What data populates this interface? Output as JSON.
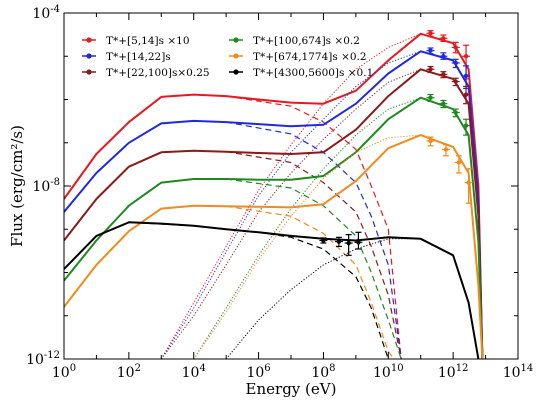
{
  "chart_data": {
    "type": "line",
    "title": "",
    "xlabel": "Energy (eV)",
    "ylabel": "Flux (erg/cm²/s)",
    "xscale": "log",
    "yscale": "log",
    "xlim": [
      1,
      100000000000000.0
    ],
    "ylim": [
      1e-12,
      0.0001
    ],
    "x_ticks": [
      {
        "v": 1,
        "b": "10",
        "e": "0"
      },
      {
        "v": 100,
        "b": "10",
        "e": "2"
      },
      {
        "v": 10000,
        "b": "10",
        "e": "4"
      },
      {
        "v": 1000000,
        "b": "10",
        "e": "6"
      },
      {
        "v": 100000000,
        "b": "10",
        "e": "8"
      },
      {
        "v": 10000000000,
        "b": "10",
        "e": "10"
      },
      {
        "v": 1000000000000,
        "b": "10",
        "e": "12"
      },
      {
        "v": 100000000000000,
        "b": "10",
        "e": "14"
      }
    ],
    "y_ticks": [
      {
        "v": 1e-12,
        "b": "10",
        "e": "-12"
      },
      {
        "v": 1e-08,
        "b": "10",
        "e": "-8"
      },
      {
        "v": 0.0001,
        "b": "10",
        "e": "-4"
      }
    ],
    "legend_position": "top-left",
    "series": [
      {
        "name": "T*+[5,14]s ×10",
        "color": "#e8191e",
        "total": [
          [
            1,
            5e-09
          ],
          [
            10,
            5.5e-08
          ],
          [
            100,
            3e-07
          ],
          [
            1000,
            1.15e-06
          ],
          [
            10000,
            1.3e-06
          ],
          [
            100000,
            1.2e-06
          ],
          [
            1000000,
            1e-06
          ],
          [
            10000000,
            8.5e-07
          ],
          [
            100000000,
            8e-07
          ],
          [
            1000000000,
            1.6e-06
          ],
          [
            10000000000,
            8e-06
          ],
          [
            100000000000,
            3.3e-05
          ],
          [
            1000000000000,
            2e-05
          ],
          [
            3000000000000,
            5e-06
          ],
          [
            6000000000000,
            1e-08
          ],
          [
            8000000000000,
            1e-12
          ]
        ],
        "sync": [
          [
            100000,
            1.2e-06
          ],
          [
            10000000,
            7e-07
          ],
          [
            100000000,
            3e-07
          ],
          [
            1000000000,
            7e-08
          ],
          [
            3000000000,
            1e-08
          ],
          [
            10000000000,
            1e-09
          ],
          [
            25000000000,
            1e-12
          ]
        ],
        "ic": [
          [
            1000,
            1e-12
          ],
          [
            10000,
            2e-11
          ],
          [
            100000,
            4e-10
          ],
          [
            1000000,
            8e-09
          ],
          [
            10000000,
            9e-08
          ],
          [
            100000000,
            8e-07
          ],
          [
            1000000000,
            5e-06
          ],
          [
            10000000000,
            1.6e-05
          ],
          [
            100000000000,
            3.3e-05
          ],
          [
            1000000000000,
            2e-05
          ],
          [
            3000000000000,
            5e-06
          ]
        ],
        "points": [
          {
            "x": 200000000000,
            "y": 3.4e-05,
            "lo": 2.9e-05,
            "hi": 3.9e-05
          },
          {
            "x": 500000000000,
            "y": 2.6e-05,
            "lo": 2.2e-05,
            "hi": 3.1e-05
          },
          {
            "x": 1200000000000,
            "y": 1.6e-05,
            "lo": 1.2e-05,
            "hi": 2.1e-05
          },
          {
            "x": 2500000000000,
            "y": 1e-05,
            "lo": 3e-06,
            "hi": 1.8e-05
          }
        ]
      },
      {
        "name": "T*+[14,22]s",
        "color": "#1f2ae0",
        "total": [
          [
            1,
            2.5e-09
          ],
          [
            10,
            2e-08
          ],
          [
            100,
            1e-07
          ],
          [
            1000,
            2.8e-07
          ],
          [
            10000,
            3.2e-07
          ],
          [
            100000,
            3e-07
          ],
          [
            1000000,
            2.7e-07
          ],
          [
            10000000,
            2.4e-07
          ],
          [
            100000000,
            2.6e-07
          ],
          [
            1000000000,
            8e-07
          ],
          [
            10000000000,
            4e-06
          ],
          [
            100000000000,
            1.3e-05
          ],
          [
            1000000000000,
            8e-06
          ],
          [
            3000000000000,
            2e-06
          ],
          [
            6000000000000,
            5e-09
          ],
          [
            8000000000000,
            1e-12
          ]
        ],
        "sync": [
          [
            100000,
            3e-07
          ],
          [
            10000000,
            1.6e-07
          ],
          [
            100000000,
            6e-08
          ],
          [
            1000000000,
            1.2e-08
          ],
          [
            3000000000,
            2e-09
          ],
          [
            10000000000,
            1.5e-10
          ],
          [
            25000000000,
            1e-12
          ]
        ],
        "ic": [
          [
            1000,
            1e-12
          ],
          [
            10000,
            1.5e-11
          ],
          [
            100000,
            3e-10
          ],
          [
            1000000,
            6e-09
          ],
          [
            10000000,
            6e-08
          ],
          [
            100000000,
            3.5e-07
          ],
          [
            1000000000,
            2e-06
          ],
          [
            10000000000,
            7e-06
          ],
          [
            100000000000,
            1.3e-05
          ],
          [
            1000000000000,
            8e-06
          ],
          [
            3000000000000,
            2e-06
          ]
        ],
        "points": [
          {
            "x": 200000000000,
            "y": 1.35e-05,
            "lo": 1.15e-05,
            "hi": 1.55e-05
          },
          {
            "x": 500000000000,
            "y": 1e-05,
            "lo": 8.5e-06,
            "hi": 1.2e-05
          },
          {
            "x": 1200000000000,
            "y": 7e-06,
            "lo": 5.5e-06,
            "hi": 8.5e-06
          },
          {
            "x": 2500000000000,
            "y": 3.5e-06,
            "lo": 1.8e-06,
            "hi": 6e-06
          }
        ]
      },
      {
        "name": "T*+[22,100]s×0.25",
        "color": "#8b1a1a",
        "total": [
          [
            1,
            5.5e-10
          ],
          [
            10,
            5e-09
          ],
          [
            100,
            2.8e-08
          ],
          [
            1000,
            6e-08
          ],
          [
            10000,
            6.5e-08
          ],
          [
            100000,
            6.2e-08
          ],
          [
            1000000,
            5.8e-08
          ],
          [
            10000000,
            5.5e-08
          ],
          [
            100000000,
            6e-08
          ],
          [
            1000000000,
            2e-07
          ],
          [
            10000000000,
            1.2e-06
          ],
          [
            100000000000,
            5e-06
          ],
          [
            1000000000000,
            3e-06
          ],
          [
            3000000000000,
            8e-07
          ],
          [
            6000000000000,
            2e-09
          ],
          [
            8000000000000,
            1e-12
          ]
        ],
        "sync": [
          [
            100000,
            6.2e-08
          ],
          [
            10000000,
            3.5e-08
          ],
          [
            100000000,
            1.2e-08
          ],
          [
            1000000000,
            2.5e-09
          ],
          [
            3000000000,
            4e-10
          ],
          [
            10000000000,
            3e-11
          ],
          [
            25000000000,
            1e-12
          ]
        ],
        "ic": [
          [
            1000,
            1e-12
          ],
          [
            10000,
            1e-11
          ],
          [
            100000,
            1.5e-10
          ],
          [
            1000000,
            2.5e-09
          ],
          [
            10000000,
            2e-08
          ],
          [
            100000000,
            1.2e-07
          ],
          [
            1000000000,
            6e-07
          ],
          [
            10000000000,
            2.5e-06
          ],
          [
            100000000000,
            5e-06
          ],
          [
            1000000000000,
            3e-06
          ],
          [
            3000000000000,
            8e-07
          ]
        ],
        "points": [
          {
            "x": 200000000000,
            "y": 5e-06,
            "lo": 4.2e-06,
            "hi": 5.8e-06
          },
          {
            "x": 500000000000,
            "y": 3.8e-06,
            "lo": 3.2e-06,
            "hi": 4.4e-06
          },
          {
            "x": 1200000000000,
            "y": 2.6e-06,
            "lo": 2.1e-06,
            "hi": 3.1e-06
          },
          {
            "x": 2500000000000,
            "y": 1.3e-06,
            "lo": 8e-07,
            "hi": 2e-06
          }
        ]
      },
      {
        "name": "T*+[100,674]s ×0.2",
        "color": "#1e8a1e",
        "total": [
          [
            1,
            6.5e-11
          ],
          [
            10,
            5.5e-10
          ],
          [
            100,
            3.5e-09
          ],
          [
            1000,
            1.2e-08
          ],
          [
            10000,
            1.45e-08
          ],
          [
            100000,
            1.45e-08
          ],
          [
            1000000,
            1.4e-08
          ],
          [
            10000000,
            1.4e-08
          ],
          [
            100000000,
            1.7e-08
          ],
          [
            1000000000,
            6e-08
          ],
          [
            10000000000,
            3.5e-07
          ],
          [
            100000000000,
            1.1e-06
          ],
          [
            1000000000000,
            6e-07
          ],
          [
            3000000000000,
            1.5e-07
          ],
          [
            6000000000000,
            5e-10
          ],
          [
            8000000000000,
            1e-12
          ]
        ],
        "sync": [
          [
            100000,
            1.45e-08
          ],
          [
            10000000,
            9e-09
          ],
          [
            100000000,
            3.5e-09
          ],
          [
            1000000000,
            7e-10
          ],
          [
            3000000000,
            1e-10
          ],
          [
            10000000000,
            8e-12
          ],
          [
            25000000000,
            1e-12
          ]
        ],
        "ic": [
          [
            10000,
            1e-12
          ],
          [
            100000,
            1.5e-11
          ],
          [
            1000000,
            2.5e-10
          ],
          [
            10000000,
            3e-09
          ],
          [
            100000000,
            2.5e-08
          ],
          [
            1000000000,
            1.5e-07
          ],
          [
            10000000000,
            6e-07
          ],
          [
            100000000000,
            1.1e-06
          ],
          [
            1000000000000,
            6e-07
          ],
          [
            3000000000000,
            1.5e-07
          ]
        ],
        "points": [
          {
            "x": 200000000000,
            "y": 1.1e-06,
            "lo": 9e-07,
            "hi": 1.3e-06
          },
          {
            "x": 500000000000,
            "y": 8e-07,
            "lo": 6.5e-07,
            "hi": 9.5e-07
          },
          {
            "x": 1200000000000,
            "y": 5e-07,
            "lo": 4e-07,
            "hi": 6e-07
          },
          {
            "x": 2500000000000,
            "y": 2.5e-07,
            "lo": 1.5e-07,
            "hi": 3.5e-07
          }
        ]
      },
      {
        "name": "T*+[674,1774]s ×0.2",
        "color": "#f28a1e",
        "total": [
          [
            1,
            1.6e-11
          ],
          [
            10,
            1.5e-10
          ],
          [
            100,
            9e-10
          ],
          [
            1000,
            3e-09
          ],
          [
            10000,
            3.5e-09
          ],
          [
            100000,
            3.4e-09
          ],
          [
            1000000,
            3.3e-09
          ],
          [
            10000000,
            3.2e-09
          ],
          [
            100000000,
            3.8e-09
          ],
          [
            1000000000,
            1.3e-08
          ],
          [
            10000000000,
            7.5e-08
          ],
          [
            100000000000,
            1.5e-07
          ],
          [
            1000000000000,
            8e-08
          ],
          [
            3000000000000,
            2e-08
          ],
          [
            6000000000000,
            5e-11
          ],
          [
            8000000000000,
            1e-12
          ]
        ],
        "sync": [
          [
            100000,
            3.4e-09
          ],
          [
            10000000,
            2e-09
          ],
          [
            100000000,
            8e-10
          ],
          [
            1000000000,
            1.5e-10
          ],
          [
            3000000000,
            2e-11
          ],
          [
            10000000000,
            1.5e-12
          ],
          [
            15000000000,
            1e-12
          ]
        ],
        "ic": [
          [
            10000,
            1e-12
          ],
          [
            100000,
            1.2e-11
          ],
          [
            1000000,
            2e-10
          ],
          [
            10000000,
            2e-09
          ],
          [
            100000000,
            1.5e-08
          ],
          [
            1000000000,
            6e-08
          ],
          [
            10000000000,
            1.3e-07
          ],
          [
            100000000000,
            1.5e-07
          ],
          [
            1000000000000,
            8e-08
          ],
          [
            3000000000000,
            2e-08
          ]
        ],
        "points": [
          {
            "x": 200000000000,
            "y": 1.1e-07,
            "lo": 8.5e-08,
            "hi": 1.35e-07
          },
          {
            "x": 600000000000,
            "y": 7e-08,
            "lo": 5e-08,
            "hi": 9e-08
          },
          {
            "x": 1500000000000,
            "y": 3.5e-08,
            "lo": 2e-08,
            "hi": 5e-08
          },
          {
            "x": 3000000000000,
            "y": 1.2e-08,
            "lo": 4e-09,
            "hi": 2.5e-08
          }
        ]
      },
      {
        "name": "T*+[4300,5600]s ×0.1",
        "color": "#000000",
        "total": [
          [
            1,
            1.2e-10
          ],
          [
            10,
            7e-10
          ],
          [
            100,
            1.45e-09
          ],
          [
            1000,
            1.35e-09
          ],
          [
            10000,
            1.2e-09
          ],
          [
            100000,
            1e-09
          ],
          [
            1000000,
            8.5e-10
          ],
          [
            10000000,
            7e-10
          ],
          [
            100000000,
            6e-10
          ],
          [
            1000000000,
            5.5e-10
          ],
          [
            10000000000,
            6.5e-10
          ],
          [
            100000000000,
            6e-10
          ],
          [
            1000000000000,
            2.5e-10
          ],
          [
            3000000000000,
            2e-11
          ],
          [
            6000000000000,
            1e-12
          ]
        ],
        "sync": [
          [
            100,
            1.45e-09
          ],
          [
            10000,
            1.2e-09
          ],
          [
            1000000,
            8.5e-10
          ],
          [
            10000000,
            6.5e-10
          ],
          [
            100000000,
            3.5e-10
          ],
          [
            1000000000,
            8e-11
          ],
          [
            3000000000,
            1.5e-11
          ],
          [
            10000000000,
            1e-12
          ]
        ],
        "ic": [
          [
            100000,
            1e-12
          ],
          [
            1000000,
            8e-12
          ],
          [
            10000000,
            4e-11
          ],
          [
            100000000,
            1.5e-10
          ],
          [
            1000000000,
            3.5e-10
          ],
          [
            10000000000,
            6e-10
          ],
          [
            100000000000,
            6e-10
          ],
          [
            1000000000000,
            2.5e-10
          ],
          [
            3000000000000,
            2e-11
          ]
        ],
        "points": [
          {
            "x": 100000000,
            "y": 5.5e-10,
            "lo": 4.8e-10,
            "hi": 6.3e-10
          },
          {
            "x": 300000000,
            "y": 5.2e-10,
            "lo": 4e-10,
            "hi": 6.5e-10
          },
          {
            "x": 600000000,
            "y": 4.8e-10,
            "lo": 2.5e-10,
            "hi": 7.5e-10
          },
          {
            "x": 1200000000,
            "y": 5e-10,
            "lo": 3.5e-10,
            "hi": 8.5e-10
          }
        ]
      }
    ]
  }
}
